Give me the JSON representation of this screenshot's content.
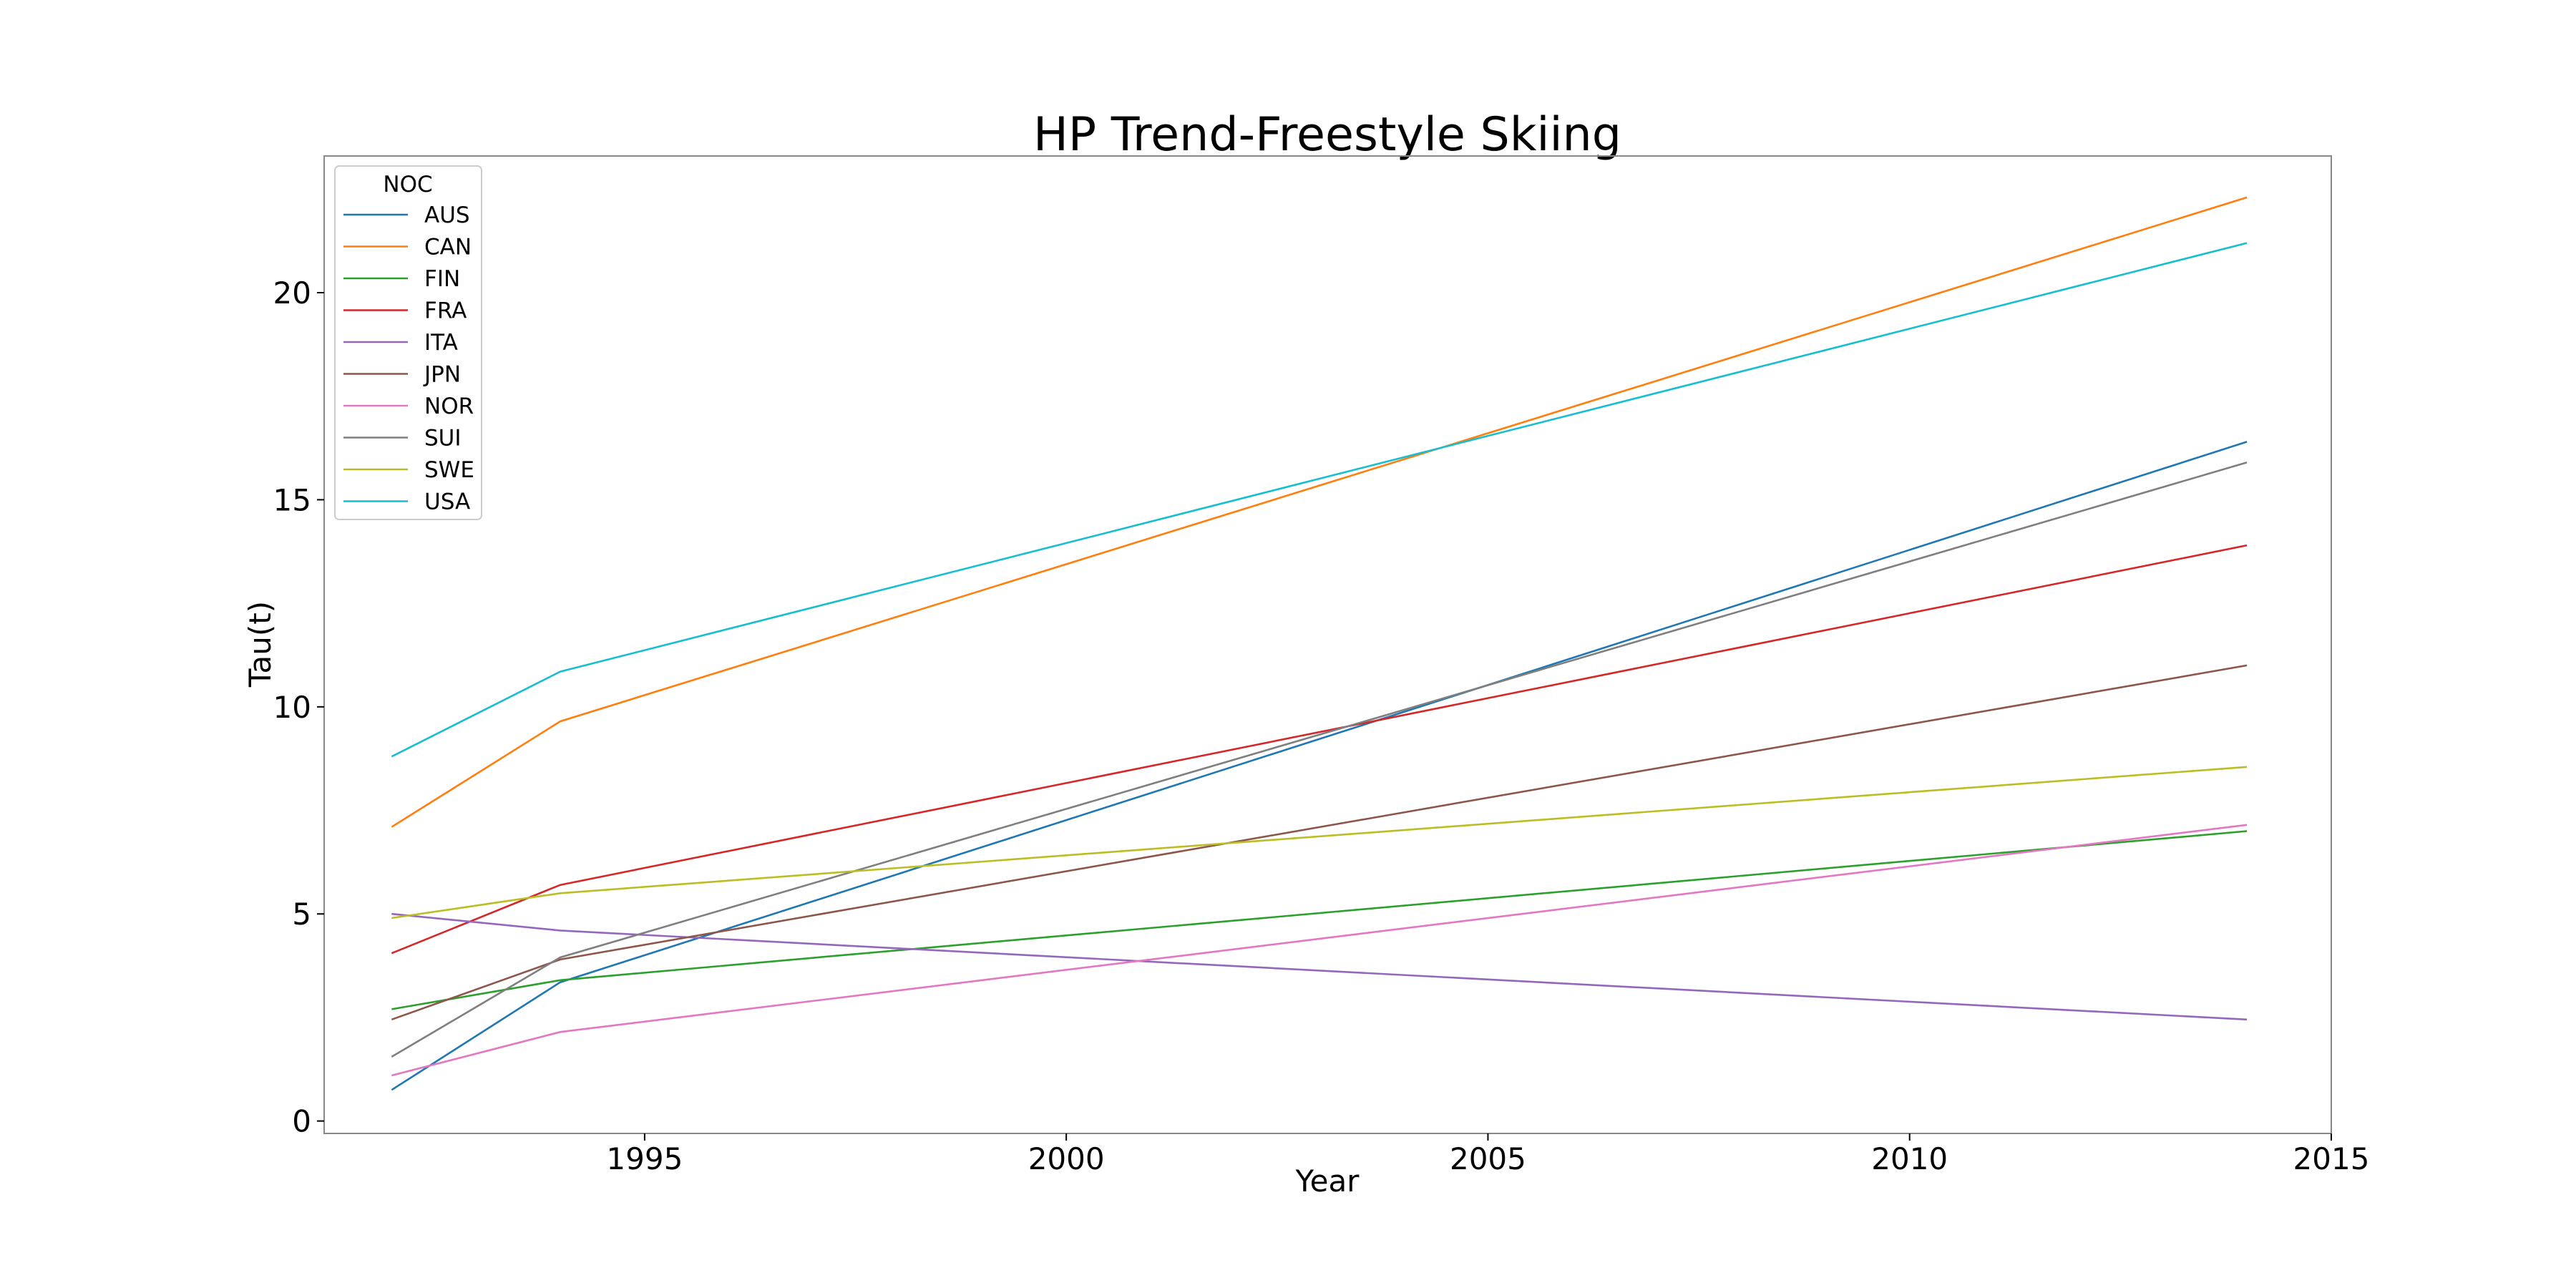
{
  "chart_data": {
    "type": "line",
    "title": "HP Trend-Freestyle Skiing",
    "xlabel": "Year",
    "ylabel": "Tau(t)",
    "xlim": [
      1991.2,
      2015.0
    ],
    "ylim": [
      -0.3,
      23.3
    ],
    "xticks": [
      1995,
      2000,
      2005,
      2010,
      2015
    ],
    "yticks": [
      0,
      5,
      10,
      15,
      20
    ],
    "grid": false,
    "legend": {
      "title": "NOC",
      "placement": "top-left"
    },
    "x": [
      1992,
      1994,
      2014
    ],
    "series": [
      {
        "name": "AUS",
        "color": "#1f77b4",
        "values": [
          0.75,
          3.35,
          16.4
        ]
      },
      {
        "name": "CAN",
        "color": "#ff7f0e",
        "values": [
          7.1,
          9.65,
          22.3
        ]
      },
      {
        "name": "FIN",
        "color": "#2ca02c",
        "values": [
          2.7,
          3.4,
          7.0
        ]
      },
      {
        "name": "FRA",
        "color": "#d62728",
        "values": [
          4.05,
          5.7,
          13.9
        ]
      },
      {
        "name": "ITA",
        "color": "#9467bd",
        "values": [
          5.0,
          4.6,
          2.45
        ]
      },
      {
        "name": "JPN",
        "color": "#8c564b",
        "values": [
          2.45,
          3.9,
          11.0
        ]
      },
      {
        "name": "NOR",
        "color": "#e377c2",
        "values": [
          1.1,
          2.15,
          7.15
        ]
      },
      {
        "name": "SUI",
        "color": "#7f7f7f",
        "values": [
          1.55,
          3.95,
          15.9
        ]
      },
      {
        "name": "SWE",
        "color": "#bcbd22",
        "values": [
          4.9,
          5.5,
          8.55
        ]
      },
      {
        "name": "USA",
        "color": "#17becf",
        "values": [
          8.8,
          10.85,
          21.2
        ]
      }
    ]
  }
}
